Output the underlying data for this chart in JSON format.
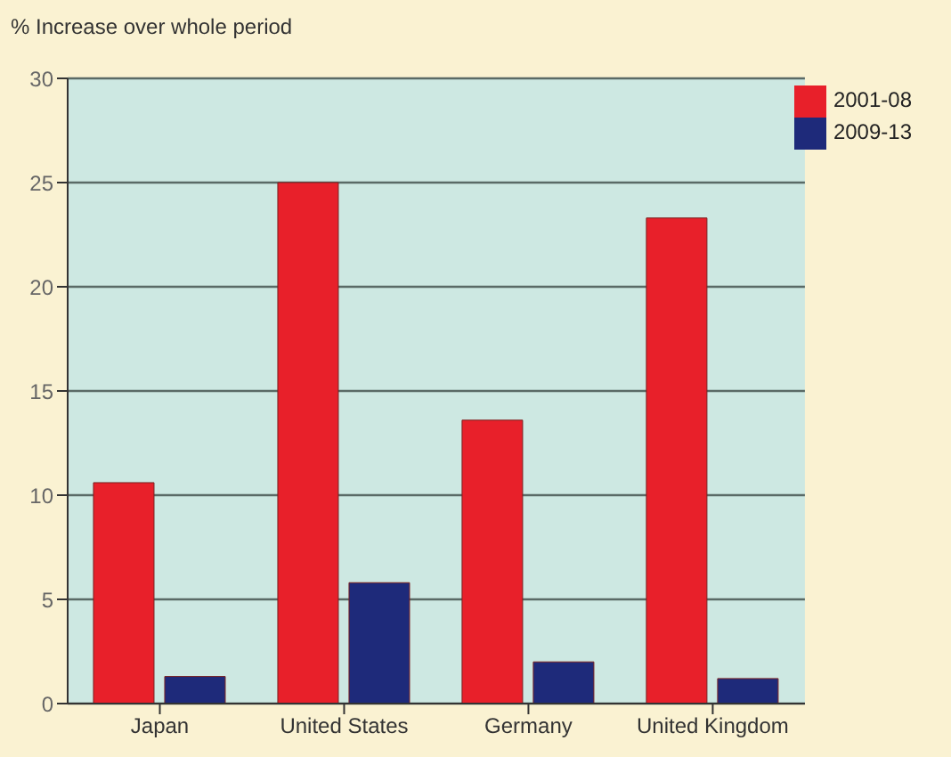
{
  "chart_data": {
    "type": "bar",
    "ylabel": "% Increase over whole period",
    "categories": [
      "Japan",
      "United States",
      "Germany",
      "United Kingdom"
    ],
    "series": [
      {
        "name": "2001-08",
        "color": "#e8202a",
        "values": [
          10.6,
          25,
          13.6,
          23.3
        ]
      },
      {
        "name": "2009-13",
        "color": "#1e2a7a",
        "values": [
          1.3,
          5.8,
          2.0,
          1.2
        ]
      }
    ],
    "ylim": [
      0,
      30
    ],
    "yticks": [
      0,
      5,
      10,
      15,
      20,
      25,
      30
    ],
    "grid": "y",
    "legend": "top right"
  }
}
